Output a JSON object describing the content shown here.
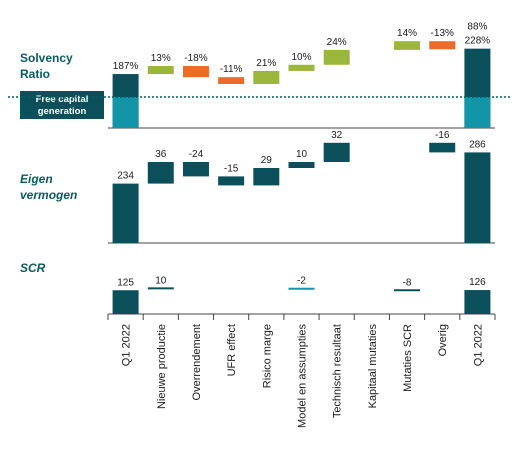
{
  "categories": [
    "Q1 2022",
    "Nieuwe productie",
    "Overrendement",
    "UFR effect",
    "Risico marge",
    "Model en assumpties",
    "Technisch resultaat",
    "Kapitaal mutaties",
    "Mutaties SCR",
    "Overig",
    "Q1 2022"
  ],
  "colors": {
    "total": "#0b4f5a",
    "positive": "#9bb63a",
    "negative": "#ee6a2b",
    "free_capital": "#1296a7",
    "threshold_line": "#0b5b5e",
    "title": "#0b5b5e"
  },
  "legend": {
    "free_capital_label": "Free capital generation"
  },
  "chart_data": [
    {
      "type": "bar",
      "title": "Solvency Ratio",
      "unit": "%",
      "start": 187,
      "end": 228,
      "end_label_top": "88%",
      "threshold": 150,
      "steps": [
        {
          "category": "Nieuwe productie",
          "value": 13,
          "label": "13%"
        },
        {
          "category": "Overrendement",
          "value": -18,
          "label": "-18%"
        },
        {
          "category": "UFR effect",
          "value": -11,
          "label": "-11%"
        },
        {
          "category": "Risico marge",
          "value": 21,
          "label": "21%"
        },
        {
          "category": "Model en assumpties",
          "value": 10,
          "label": "10%"
        },
        {
          "category": "Technisch resultaat",
          "value": 24,
          "label": "24%"
        },
        {
          "category": "Kapitaal mutaties",
          "value": null,
          "label": ""
        },
        {
          "category": "Mutaties SCR",
          "value": 14,
          "label": "14%"
        },
        {
          "category": "Overig",
          "value": -13,
          "label": "-13%"
        }
      ],
      "start_label": "187%",
      "end_label": "228%"
    },
    {
      "type": "bar",
      "title": "Eigen vermogen",
      "start": 234,
      "end": 286,
      "steps": [
        {
          "category": "Nieuwe productie",
          "value": 36,
          "label": "36"
        },
        {
          "category": "Overrendement",
          "value": -24,
          "label": "-24"
        },
        {
          "category": "UFR effect",
          "value": -15,
          "label": "-15"
        },
        {
          "category": "Risico marge",
          "value": 29,
          "label": "29"
        },
        {
          "category": "Model en assumpties",
          "value": 10,
          "label": "10"
        },
        {
          "category": "Technisch resultaat",
          "value": 32,
          "label": "32"
        },
        {
          "category": "Kapitaal mutaties",
          "value": null,
          "label": ""
        },
        {
          "category": "Mutaties SCR",
          "value": null,
          "label": ""
        },
        {
          "category": "Overig",
          "value": -16,
          "label": "-16"
        }
      ],
      "start_label": "234",
      "end_label": "286"
    },
    {
      "type": "bar",
      "title": "SCR",
      "start": 125,
      "end": 126,
      "steps": [
        {
          "category": "Nieuwe productie",
          "value": 10,
          "label": "10"
        },
        {
          "category": "Overrendement",
          "value": null,
          "label": ""
        },
        {
          "category": "UFR effect",
          "value": null,
          "label": ""
        },
        {
          "category": "Risico marge",
          "value": null,
          "label": ""
        },
        {
          "category": "Model en assumpties",
          "value": -2,
          "label": "-2"
        },
        {
          "category": "Technisch resultaat",
          "value": null,
          "label": ""
        },
        {
          "category": "Kapitaal mutaties",
          "value": null,
          "label": ""
        },
        {
          "category": "Mutaties SCR",
          "value": -8,
          "label": "-8"
        },
        {
          "category": "Overig",
          "value": null,
          "label": ""
        }
      ],
      "start_label": "125",
      "end_label": "126"
    }
  ]
}
